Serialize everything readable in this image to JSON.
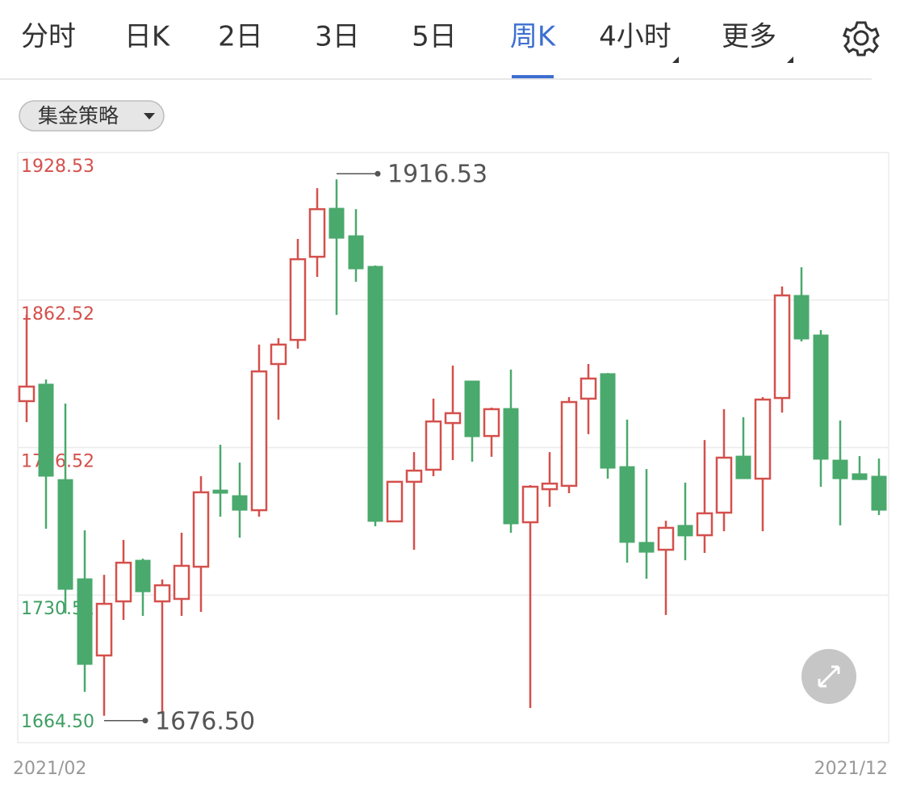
{
  "tabs": [
    "分时",
    "日K",
    "2日",
    "3日",
    "5日",
    "周K",
    "4小时",
    "更多"
  ],
  "active_tab": 5,
  "strategy": "集金策略",
  "chart_data": {
    "type": "candlestick",
    "ylim": [
      1664.5,
      1928.53
    ],
    "yticks": [
      1928.53,
      1862.52,
      1796.52,
      1730.51,
      {
        "value": 1664.5,
        "label": "1664.50"
      }
    ],
    "ytick_colors": [
      "#d4504c",
      "#d4504c",
      "#d4504c",
      "#3e9e63",
      "#3e9e63"
    ],
    "grid": true,
    "up_color": "#d4504c",
    "down_color": "#4aa96c",
    "x_labels": [
      "2021/02",
      "2021/12"
    ],
    "open": [
      1817.3,
      1824.9,
      1782.2,
      1737.8,
      1703.5,
      1727.7,
      1746.1,
      1727.7,
      1728.8,
      1743.2,
      1777.5,
      1775.0,
      1768.5,
      1833.9,
      1844.7,
      1881.9,
      1903.6,
      1891.3,
      1877.6,
      1763.5,
      1781.2,
      1786.6,
      1807.5,
      1826.3,
      1801.7,
      1814.0,
      1763.1,
      1777.9,
      1779.4,
      1818.4,
      1829.6,
      1788.0,
      1754.1,
      1750.8,
      1761.7,
      1757.3,
      1767.4,
      1792.7,
      1782.6,
      1818.7,
      1864.6,
      1846.9,
      1790.9,
      1784.8,
      1783.7
    ],
    "high": [
      1855.9,
      1827.0,
      1816.2,
      1759.5,
      1739.6,
      1755.2,
      1746.8,
      1737.5,
      1758.4,
      1783.7,
      1797.8,
      1789.8,
      1842.6,
      1845.5,
      1889.9,
      1912.6,
      1916.53,
      1903.2,
      1878.0,
      1781.5,
      1794.5,
      1818.4,
      1833.2,
      1826.3,
      1814.4,
      1831.4,
      1779.7,
      1794.5,
      1819.1,
      1833.9,
      1829.9,
      1809.0,
      1786.9,
      1763.8,
      1780.8,
      1799.9,
      1813.7,
      1810.1,
      1819.1,
      1868.6,
      1877.2,
      1849.1,
      1808.6,
      1792.7,
      1791.6
    ],
    "low": [
      1807.9,
      1760.2,
      1722.3,
      1687.2,
      1676.5,
      1719.4,
      1721.2,
      1677.9,
      1721.2,
      1723.0,
      1765.6,
      1756.2,
      1765.6,
      1809.0,
      1840.8,
      1872.9,
      1855.9,
      1870.7,
      1761.3,
      1763.5,
      1750.8,
      1783.7,
      1790.9,
      1790.2,
      1792.4,
      1758.4,
      1680.0,
      1770.0,
      1776.1,
      1802.5,
      1782.6,
      1745.0,
      1737.8,
      1721.6,
      1746.1,
      1749.4,
      1759.1,
      1782.6,
      1759.1,
      1812.2,
      1844.0,
      1779.0,
      1761.7,
      1782.0,
      1766.3
    ],
    "close": [
      1823.8,
      1783.7,
      1733.1,
      1699.5,
      1726.6,
      1745.0,
      1732.0,
      1734.9,
      1743.6,
      1776.5,
      1776.1,
      1768.5,
      1830.6,
      1842.6,
      1880.8,
      1903.2,
      1890.2,
      1876.5,
      1763.5,
      1781.2,
      1786.2,
      1808.2,
      1811.9,
      1801.4,
      1813.7,
      1762.4,
      1779.0,
      1780.4,
      1816.9,
      1827.4,
      1787.3,
      1754.1,
      1749.7,
      1760.6,
      1757.0,
      1767.1,
      1792.0,
      1782.6,
      1818.0,
      1864.6,
      1845.1,
      1791.3,
      1782.6,
      1782.2,
      1768.5
    ],
    "max_label": 1916.53,
    "min_label": {
      "value": 1676.5,
      "label": "1676.50"
    }
  }
}
